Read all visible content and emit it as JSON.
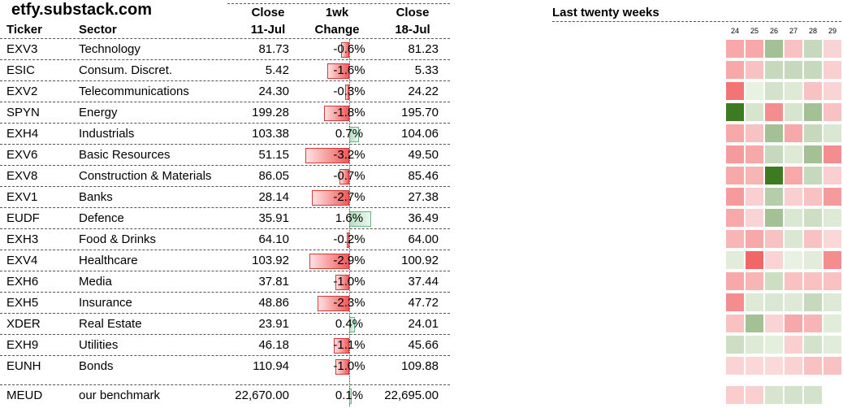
{
  "brand": "etfy.substack.com",
  "headers": {
    "ticker": "Ticker",
    "sector": "Sector",
    "close_prev_1": "Close",
    "close_prev_2": "11-Jul",
    "change_1": "1wk",
    "change_2": "Change",
    "close_cur_1": "Close",
    "close_cur_2": "18-Jul",
    "weeks_title": "Last twenty weeks"
  },
  "week_labels": [
    "24",
    "25",
    "26",
    "27",
    "28",
    "29"
  ],
  "colors": {
    "neg_dark": "#f05a5a",
    "neg_light": "#fde3e3",
    "pos_dark": "#3d7a22",
    "pos_light": "#e8f1e2"
  },
  "rows": [
    {
      "ticker": "EXV3",
      "sector": "Technology",
      "close_prev": "81.73",
      "change": "-0.6%",
      "change_val": -0.6,
      "close_cur": "81.23",
      "weeks": [
        -2,
        -2,
        2,
        -1,
        1,
        -0.3
      ]
    },
    {
      "ticker": "ESIC",
      "sector": "Consum. Discret.",
      "close_prev": "5.42",
      "change": "-1.6%",
      "change_val": -1.6,
      "close_cur": "5.33",
      "weeks": [
        -2,
        -1,
        1,
        1,
        1,
        -0.5
      ]
    },
    {
      "ticker": "EXV2",
      "sector": "Telecommunications",
      "close_prev": "24.30",
      "change": "-0.3%",
      "change_val": -0.3,
      "close_cur": "24.22",
      "weeks": [
        -4,
        0,
        0.6,
        0.3,
        -1,
        -0.3
      ]
    },
    {
      "ticker": "SPYN",
      "sector": "Energy",
      "close_prev": "199.28",
      "change": "-1.8%",
      "change_val": -1.8,
      "close_cur": "195.70",
      "weeks": [
        5,
        0.5,
        -3,
        0.5,
        2,
        -1
      ]
    },
    {
      "ticker": "EXH4",
      "sector": "Industrials",
      "close_prev": "103.38",
      "change": "0.7%",
      "change_val": 0.7,
      "close_cur": "104.06",
      "weeks": [
        -2,
        -1,
        2,
        -2,
        1,
        0.4
      ]
    },
    {
      "ticker": "EXV6",
      "sector": "Basic Resources",
      "close_prev": "51.15",
      "change": "-3.2%",
      "change_val": -3.2,
      "close_cur": "49.50",
      "weeks": [
        -2.5,
        -2,
        1,
        0.3,
        2,
        -3
      ]
    },
    {
      "ticker": "EXV8",
      "sector": "Construction & Materials",
      "close_prev": "86.05",
      "change": "-0.7%",
      "change_val": -0.7,
      "close_cur": "85.46",
      "weeks": [
        -2,
        -1.5,
        5,
        -2,
        1,
        -0.5
      ]
    },
    {
      "ticker": "EXV1",
      "sector": "Banks",
      "close_prev": "28.14",
      "change": "-2.7%",
      "change_val": -2.7,
      "close_cur": "27.38",
      "weeks": [
        -2.5,
        -0.5,
        1.5,
        -0.5,
        -1,
        -2.5
      ]
    },
    {
      "ticker": "EUDF",
      "sector": "Defence",
      "close_prev": "35.91",
      "change": "1.6%",
      "change_val": 1.6,
      "close_cur": "36.49",
      "weeks": [
        -2,
        -0.3,
        2,
        0.4,
        0.8,
        0.3
      ]
    },
    {
      "ticker": "EXH3",
      "sector": "Food & Drinks",
      "close_prev": "64.10",
      "change": "-0.2%",
      "change_val": -0.2,
      "close_cur": "64.00",
      "weeks": [
        -1.5,
        -2,
        -1,
        0.4,
        -1,
        -0.2
      ]
    },
    {
      "ticker": "EXV4",
      "sector": "Healthcare",
      "close_prev": "103.92",
      "change": "-2.9%",
      "change_val": -2.9,
      "close_cur": "100.92",
      "weeks": [
        0.2,
        -4.5,
        -0.3,
        0,
        0.2,
        -3
      ]
    },
    {
      "ticker": "EXH6",
      "sector": "Media",
      "close_prev": "37.81",
      "change": "-1.0%",
      "change_val": -1.0,
      "close_cur": "37.44",
      "weeks": [
        -2,
        -1.5,
        0.8,
        -1,
        -1,
        -1
      ]
    },
    {
      "ticker": "EXH5",
      "sector": "Insurance",
      "close_prev": "48.86",
      "change": "-2.3%",
      "change_val": -2.3,
      "close_cur": "47.72",
      "weeks": [
        -3,
        0.3,
        0.4,
        0.3,
        1,
        0.3
      ]
    },
    {
      "ticker": "XDER",
      "sector": "Real Estate",
      "close_prev": "23.91",
      "change": "0.4%",
      "change_val": 0.4,
      "close_cur": "24.01",
      "weeks": [
        -1,
        2,
        -0.3,
        -2,
        -1.5,
        0.2
      ]
    },
    {
      "ticker": "EXH9",
      "sector": "Utilities",
      "close_prev": "46.18",
      "change": "-1.1%",
      "change_val": -1.1,
      "close_cur": "45.66",
      "weeks": [
        0.8,
        0.3,
        0.1,
        -0.5,
        0.6,
        0.2
      ]
    },
    {
      "ticker": "EUNH",
      "sector": "Bonds",
      "close_prev": "110.94",
      "change": "-1.0%",
      "change_val": -1.0,
      "close_cur": "109.88",
      "weeks": [
        -0.3,
        -0.2,
        -0.1,
        -0.4,
        -1,
        -1
      ]
    },
    {
      "ticker": "MEUD",
      "sector": "our benchmark",
      "close_prev": "22,670.00",
      "change": "0.1%",
      "change_val": 0.1,
      "close_cur": "22,695.00",
      "weeks": [
        -0.6,
        -0.5,
        0.5,
        0.6,
        0.6,
        null
      ]
    }
  ]
}
